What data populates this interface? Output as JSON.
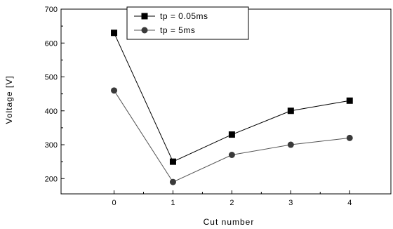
{
  "chart_data": {
    "type": "line",
    "x": [
      0,
      1,
      2,
      3,
      4
    ],
    "xticks": [
      "0",
      "1",
      "2",
      "3",
      "4"
    ],
    "yticks": [
      "200",
      "300",
      "400",
      "500",
      "600",
      "700"
    ],
    "xlabel": "Cut number",
    "ylabel": "Voltage [V]",
    "xlim": [
      -0.9,
      4.7
    ],
    "ylim": [
      155,
      700
    ],
    "grid": false,
    "legend": "top-center",
    "series": [
      {
        "name": "tp = 0.05ms",
        "marker": "square",
        "color": "#000000",
        "values": [
          630,
          250,
          330,
          400,
          430
        ]
      },
      {
        "name": "tp = 5ms",
        "marker": "circle",
        "color": "#555555",
        "values": [
          460,
          190,
          270,
          300,
          320
        ]
      }
    ]
  }
}
